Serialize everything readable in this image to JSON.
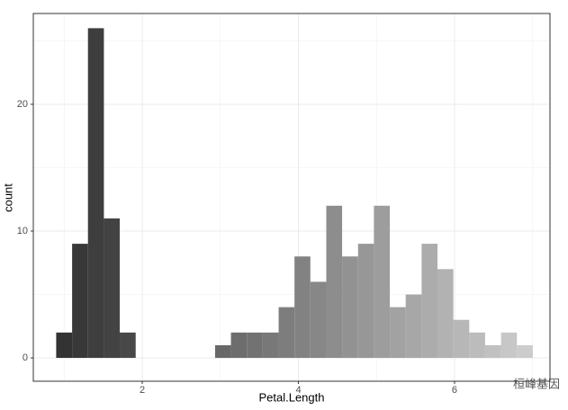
{
  "chart_data": {
    "type": "histogram",
    "bins": [
      0.898,
      1.102,
      1.305,
      1.509,
      1.712,
      1.916,
      2.119,
      2.322,
      2.526,
      2.729,
      2.933,
      3.136,
      3.34,
      3.543,
      3.747,
      3.95,
      4.153,
      4.357,
      4.56,
      4.764,
      4.967,
      5.171,
      5.374,
      5.578,
      5.781,
      5.984,
      6.188,
      6.391,
      6.595,
      6.798,
      7.002
    ],
    "values": [
      2,
      9,
      26,
      11,
      2,
      0,
      0,
      0,
      0,
      0,
      1,
      2,
      2,
      2,
      4,
      8,
      6,
      12,
      8,
      9,
      12,
      4,
      5,
      9,
      7,
      3,
      2,
      1,
      2,
      1
    ],
    "fill_range": [
      "#333333",
      "#cccccc"
    ],
    "xlabel": "Petal.Length",
    "ylabel": "count",
    "xlim": [
      0.605,
      7.222
    ],
    "xticks": [
      2,
      4,
      6
    ],
    "ylim": [
      -1.84,
      27.16
    ],
    "yticks": [
      0,
      10,
      20
    ],
    "grid": true,
    "watermark": "桓峰基因"
  }
}
